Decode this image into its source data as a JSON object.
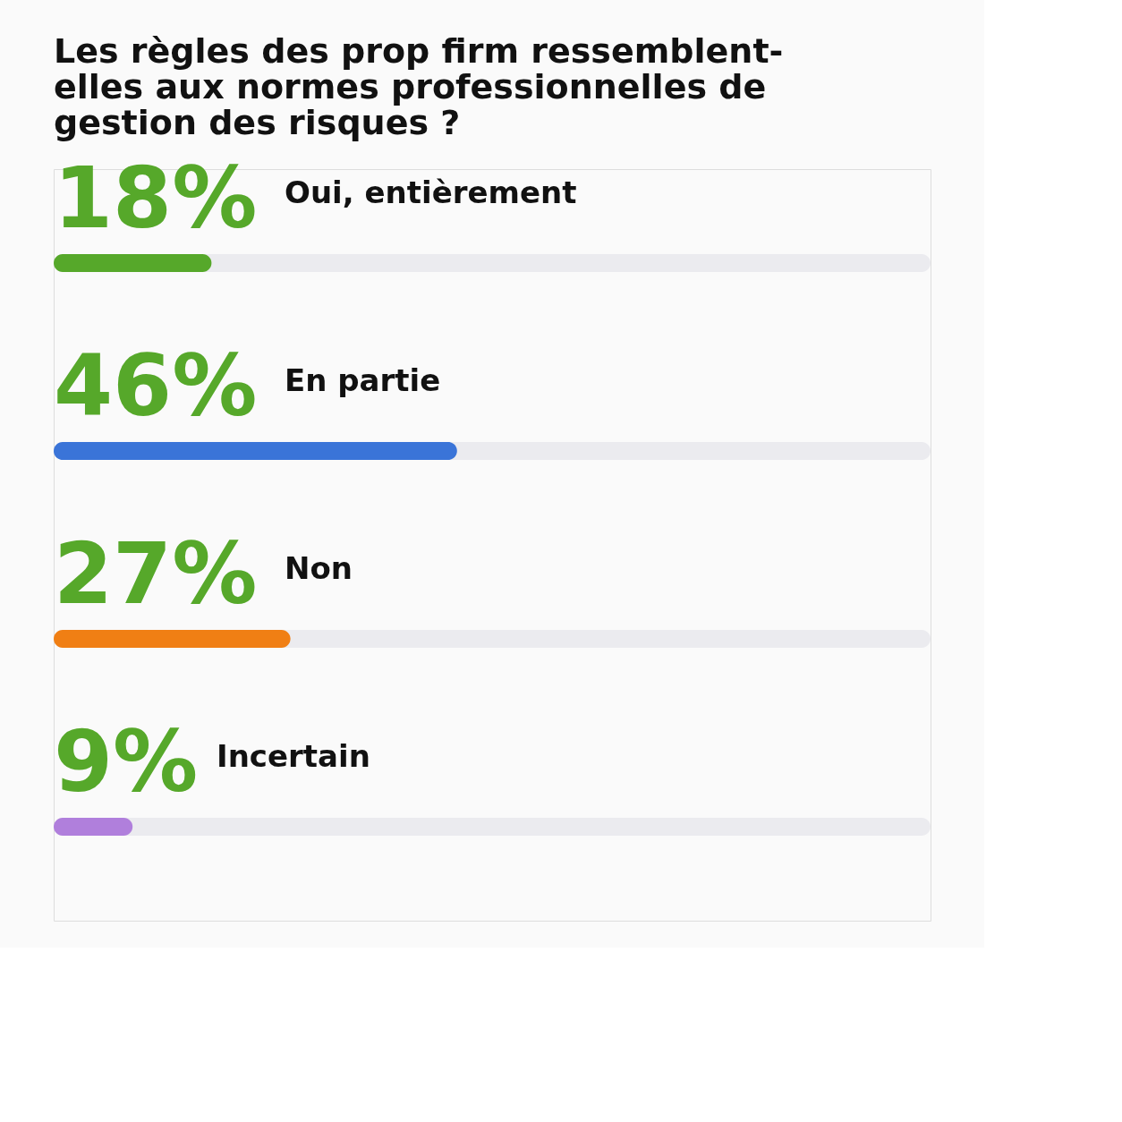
{
  "chart_data": {
    "type": "bar",
    "orientation": "horizontal",
    "title": "Les règles des prop firm ressemblent-elles aux normes professionnelles de gestion des risques ?",
    "categories": [
      "Oui, entièrement",
      "En partie",
      "Non",
      "Incertain"
    ],
    "values": [
      18,
      46,
      27,
      9
    ],
    "colors": [
      "#56a82a",
      "#3a74d8",
      "#f07f14",
      "#b07fdc"
    ],
    "value_labels": [
      "18%",
      "46%",
      "27%",
      "9%"
    ],
    "xlim": [
      0,
      100
    ],
    "tick_labels": false,
    "grid": false,
    "legend": false
  }
}
